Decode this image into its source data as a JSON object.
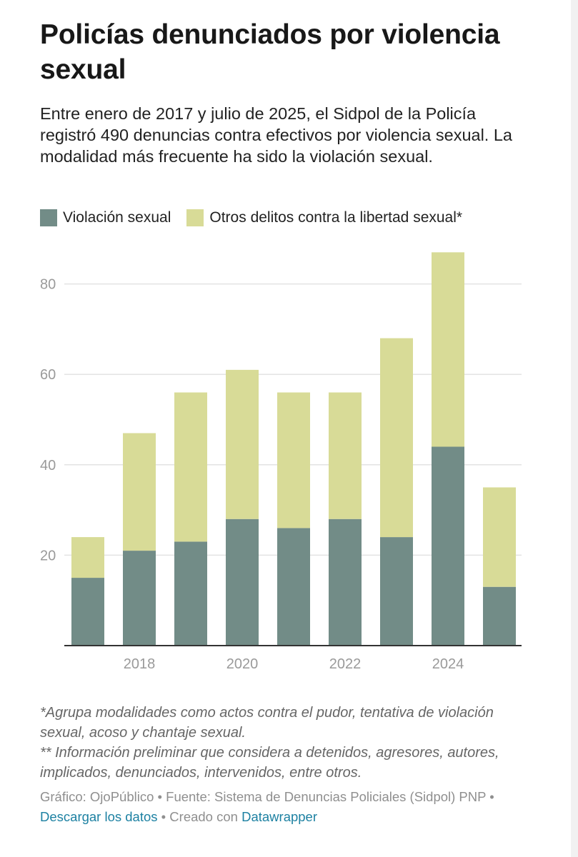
{
  "title": "Policías denunciados por violencia sexual",
  "subtitle": "Entre enero de 2017 y julio de 2025, el Sidpol de la Policía registró 490 denuncias contra efectivos por violencia sexual. La modalidad más frecuente ha sido la violación sexual.",
  "legend": [
    {
      "label": "Violación sexual",
      "color": "#728c87"
    },
    {
      "label": "Otros delitos contra la libertad sexual*",
      "color": "#d8db97"
    }
  ],
  "chart_data": {
    "type": "bar",
    "stacked": true,
    "x": [
      2017,
      2018,
      2019,
      2020,
      2021,
      2022,
      2023,
      2024,
      2025
    ],
    "x_tick_labels": [
      "2018",
      "2020",
      "2022",
      "2024"
    ],
    "series": [
      {
        "name": "Violación sexual",
        "color": "#728c87",
        "values": [
          15,
          21,
          23,
          28,
          26,
          28,
          24,
          44,
          13
        ]
      },
      {
        "name": "Otros delitos contra la libertad sexual*",
        "color": "#d8db97",
        "values": [
          9,
          26,
          33,
          33,
          30,
          28,
          44,
          43,
          22
        ]
      }
    ],
    "y_ticks": [
      20,
      40,
      60,
      80
    ],
    "ylim": [
      0,
      90
    ],
    "grid": true,
    "legend_position": "top-left"
  },
  "notes": [
    "*Agrupa modalidades como actos contra el pudor, tentativa de violación sexual, acoso y chantaje sexual.",
    "** Información preliminar que considera a detenidos, agresores, autores, implicados, denunciados, intervenidos, entre otros."
  ],
  "footer": {
    "credit": "Gráfico: OjoPúblico",
    "source": "Fuente: Sistema de Denuncias Policiales (Sidpol) PNP",
    "download_label": "Descargar los datos",
    "created_with": "Creado con",
    "tool_label": "Datawrapper",
    "separator": "•"
  }
}
